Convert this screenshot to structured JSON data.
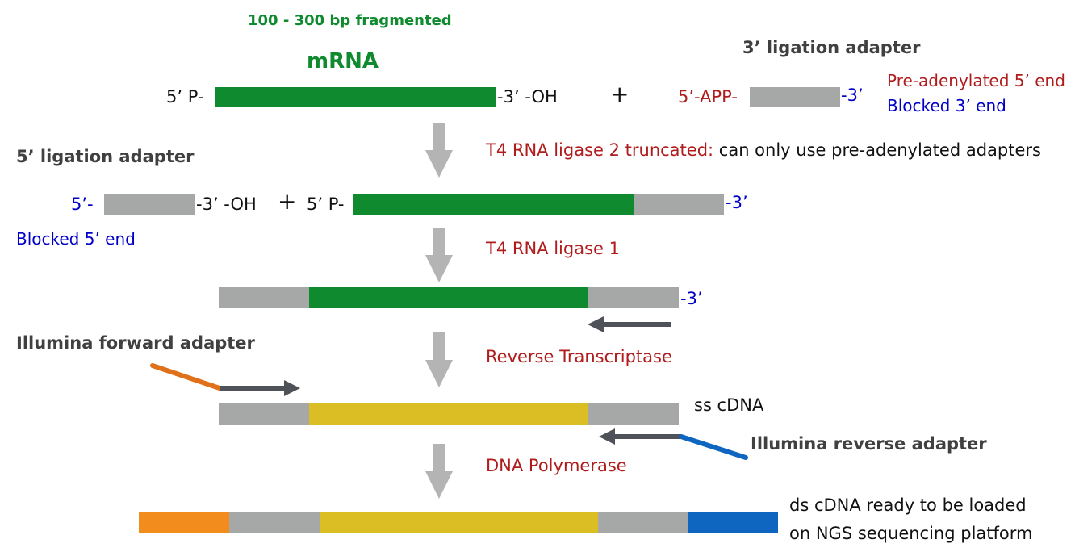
{
  "colors": {
    "mrna_green": "#0f8a2e",
    "adapter_gray": "#a6a8a7",
    "cdna_yellow": "#dbbd24",
    "forward_orange": "#f28c1c",
    "reverse_blue": "#0f66c0",
    "enzyme_red": "#b01c1c",
    "blocked_blue": "#0000c8",
    "label_dark": "#404040",
    "arrow_gray": "#b4b4b4",
    "primer_arrow": "#50525a"
  },
  "labels": {
    "fragment_note": "100 - 300 bp fragmented",
    "mrna_title": "mRNA",
    "three_prime_adapter_title": "3’ ligation adapter",
    "five_prime_adapter_title": "5’ ligation adapter",
    "mrna_5p": "5’ P-",
    "mrna_3p": "-3’ -OH",
    "plus": "+",
    "app_5p": "5’-APP-",
    "adapter_3p": "-3’",
    "pre_adenylated": "Pre-adenylated 5’ end",
    "blocked_3p": "Blocked 3’ end",
    "ligase2_name": "T4 RNA ligase 2 truncated:",
    "ligase2_note": " can only use pre-adenylated adapters",
    "adapter5_5p": "5’-",
    "adapter5_3p": "-3’ -OH",
    "plus2": "+",
    "ligated_5p": "5’ P-",
    "ligated_3p": "-3’",
    "blocked_5p": "Blocked 5’ end",
    "ligase1": "T4 RNA ligase 1",
    "full_3p": "-3’",
    "forward_adapter": "Illumina forward adapter",
    "reverse_transcriptase": "Reverse Transcriptase",
    "ss_cdna": "ss cDNA",
    "reverse_adapter": "Illumina reverse adapter",
    "dna_polymerase": "DNA Polymerase",
    "ds_cdna_line1": "ds cDNA ready to be loaded",
    "ds_cdna_line2": "on NGS sequencing platform"
  }
}
